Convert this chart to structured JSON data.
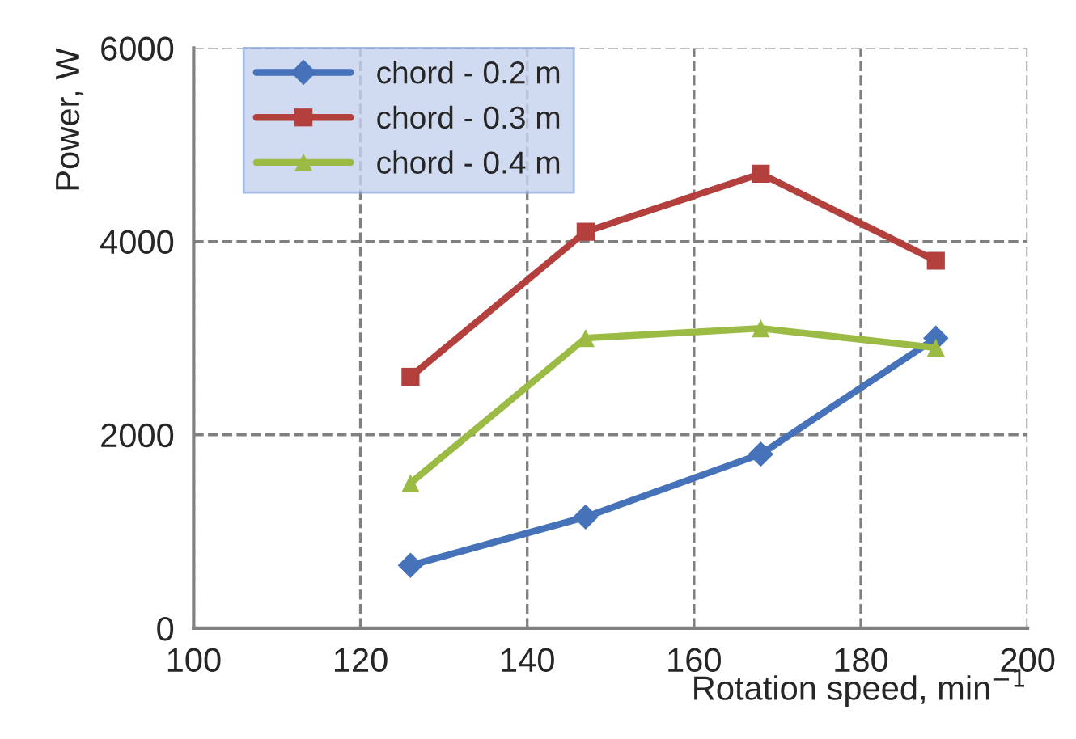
{
  "chart_data": {
    "type": "line",
    "xlabel": "Rotation speed, min$^{−1}$",
    "ylabel": "Power, W",
    "x": [
      126,
      147,
      168,
      189
    ],
    "series": [
      {
        "name": "chord - 0.2 m",
        "color": "#4572b8",
        "marker": "diamond",
        "values": [
          650,
          1150,
          1800,
          3000
        ]
      },
      {
        "name": "chord - 0.3 m",
        "color": "#b3403c",
        "marker": "square",
        "values": [
          2600,
          4100,
          4700,
          3800
        ]
      },
      {
        "name": "chord - 0.4 m",
        "color": "#9bbb45",
        "marker": "triangle",
        "values": [
          1500,
          3000,
          3100,
          2900
        ]
      }
    ],
    "xlim": [
      100,
      200
    ],
    "xticks": [
      100,
      120,
      140,
      160,
      180,
      200
    ],
    "ylim": [
      0,
      6000
    ],
    "yticks": [
      0,
      2000,
      4000,
      6000
    ],
    "grid": true,
    "legend": "top left",
    "line_style": "solid"
  }
}
